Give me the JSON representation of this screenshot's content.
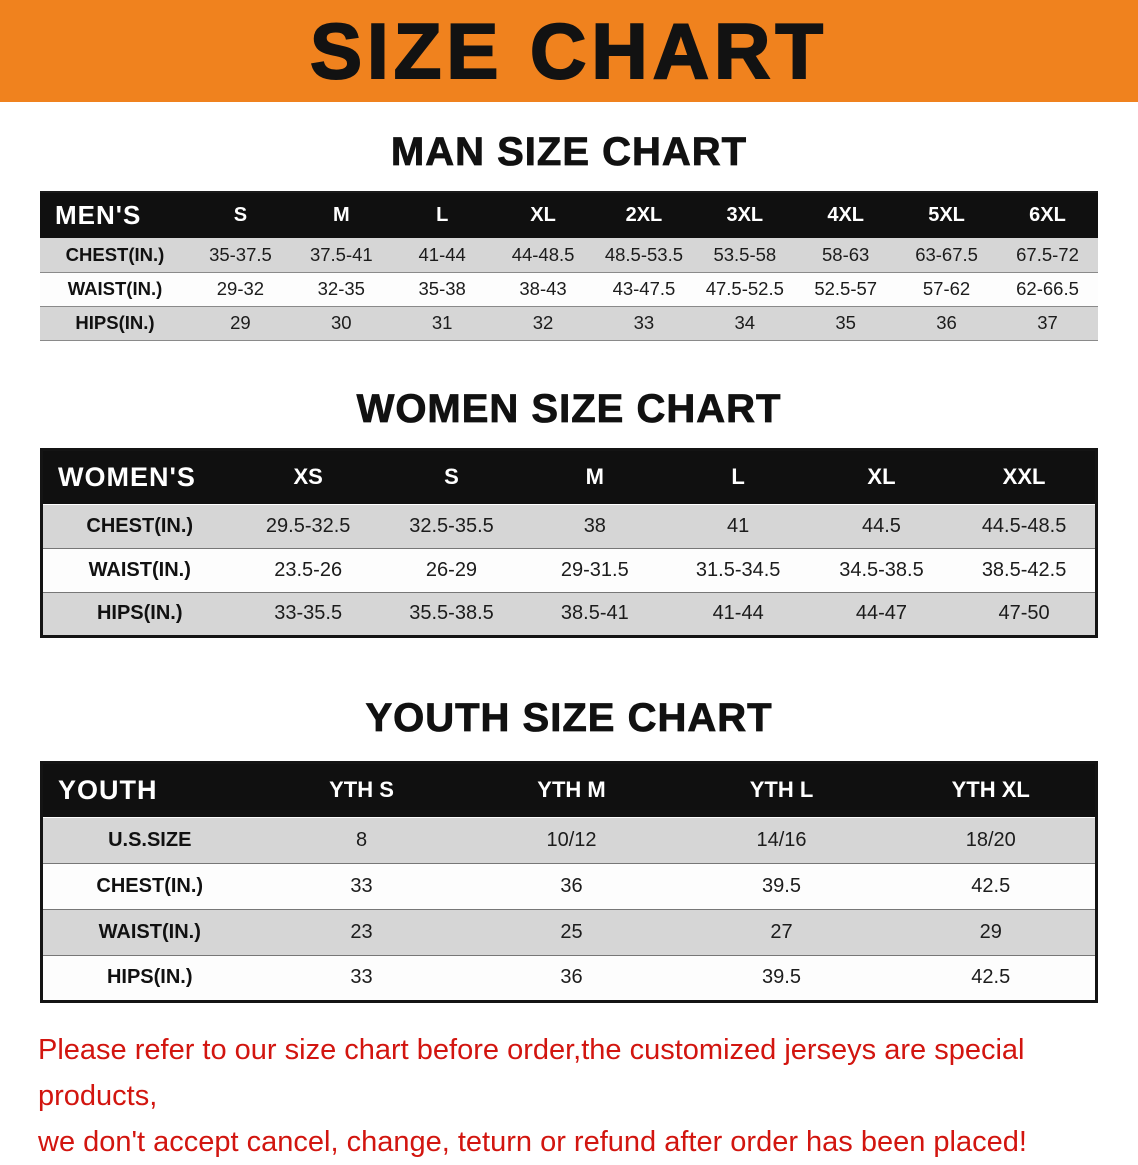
{
  "banner": {
    "title": "SIZE CHART",
    "bg_color": "#F0821E",
    "title_color": "#121212"
  },
  "sections": [
    {
      "id": "men",
      "heading": "MAN SIZE CHART",
      "table": {
        "header": [
          "MEN'S",
          "S",
          "M",
          "L",
          "XL",
          "2XL",
          "3XL",
          "4XL",
          "5XL",
          "6XL"
        ],
        "rows": [
          [
            "CHEST(IN.)",
            "35-37.5",
            "37.5-41",
            "41-44",
            "44-48.5",
            "48.5-53.5",
            "53.5-58",
            "58-63",
            "63-67.5",
            "67.5-72"
          ],
          [
            "WAIST(IN.)",
            "29-32",
            "32-35",
            "35-38",
            "38-43",
            "43-47.5",
            "47.5-52.5",
            "52.5-57",
            "57-62",
            "62-66.5"
          ],
          [
            "HIPS(IN.)",
            "29",
            "30",
            "31",
            "32",
            "33",
            "34",
            "35",
            "36",
            "37"
          ]
        ]
      }
    },
    {
      "id": "women",
      "heading": "WOMEN SIZE CHART",
      "table": {
        "header": [
          "WOMEN'S",
          "XS",
          "S",
          "M",
          "L",
          "XL",
          "XXL"
        ],
        "rows": [
          [
            "CHEST(IN.)",
            "29.5-32.5",
            "32.5-35.5",
            "38",
            "41",
            "44.5",
            "44.5-48.5"
          ],
          [
            "WAIST(IN.)",
            "23.5-26",
            "26-29",
            "29-31.5",
            "31.5-34.5",
            "34.5-38.5",
            "38.5-42.5"
          ],
          [
            "HIPS(IN.)",
            "33-35.5",
            "35.5-38.5",
            "38.5-41",
            "41-44",
            "44-47",
            "47-50"
          ]
        ]
      }
    },
    {
      "id": "youth",
      "heading": "YOUTH SIZE CHART",
      "table": {
        "header": [
          "YOUTH",
          "YTH S",
          "YTH M",
          "YTH L",
          "YTH XL"
        ],
        "rows": [
          [
            "U.S.SIZE",
            "8",
            "10/12",
            "14/16",
            "18/20"
          ],
          [
            "CHEST(IN.)",
            "33",
            "36",
            "39.5",
            "42.5"
          ],
          [
            "WAIST(IN.)",
            "23",
            "25",
            "27",
            "29"
          ],
          [
            "HIPS(IN.)",
            "33",
            "36",
            "39.5",
            "42.5"
          ]
        ]
      }
    }
  ],
  "disclaimer": {
    "text_color": "#d2150f",
    "line1": "Please refer to our size chart before order,the customized jerseys are special products,",
    "line2": "we don't accept cancel, change, teturn or refund after order has been placed!"
  },
  "row_colors": {
    "header_bg": "#101010",
    "header_text": "#ffffff",
    "odd_row_bg": "#d6d6d6",
    "even_row_bg": "#fdfdfd"
  }
}
